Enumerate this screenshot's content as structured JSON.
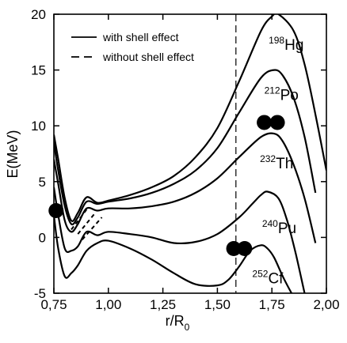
{
  "chart_data": {
    "type": "line",
    "xlabel": "r/R",
    "xlabel_sub": "0",
    "ylabel": "E(MeV)",
    "xlim": [
      0.75,
      2.0
    ],
    "ylim": [
      -5,
      20
    ],
    "x_ticks": [
      0.75,
      1.0,
      1.25,
      1.5,
      1.75,
      2.0
    ],
    "x_tick_labels": [
      "0,75",
      "1,00",
      "1,25",
      "1,50",
      "1,75",
      "2,00"
    ],
    "y_ticks": [
      -5,
      0,
      5,
      10,
      15,
      20
    ],
    "y_tick_labels": [
      "-5",
      "0",
      "5",
      "10",
      "15",
      "20"
    ],
    "grid": false,
    "legend": {
      "position": "top-left",
      "entries": [
        {
          "label": "with shell effect",
          "style": "solid"
        },
        {
          "label": "without shell effect",
          "style": "dashed"
        }
      ]
    },
    "series": [
      {
        "name": "198Hg",
        "mass": "198",
        "element": "Hg",
        "x": [
          0.75,
          0.77,
          0.8,
          0.83,
          0.86,
          0.9,
          0.95,
          1.0,
          1.1,
          1.2,
          1.3,
          1.4,
          1.5,
          1.6,
          1.7,
          1.75,
          1.78,
          1.85,
          1.9,
          1.95,
          2.0
        ],
        "y": [
          9.2,
          7.0,
          3.5,
          1.5,
          2.2,
          3.6,
          3.1,
          3.3,
          3.8,
          4.5,
          5.5,
          7.2,
          9.8,
          14.0,
          18.5,
          19.8,
          20.0,
          18.5,
          15.5,
          11.0,
          6.0
        ]
      },
      {
        "name": "212Po",
        "mass": "212",
        "element": "Po",
        "x": [
          0.75,
          0.77,
          0.8,
          0.83,
          0.86,
          0.9,
          0.95,
          1.0,
          1.1,
          1.2,
          1.3,
          1.4,
          1.5,
          1.6,
          1.7,
          1.76,
          1.8,
          1.85,
          1.9,
          1.95
        ],
        "y": [
          8.5,
          6.0,
          2.8,
          1.2,
          1.8,
          3.2,
          3.0,
          3.2,
          3.5,
          4.0,
          4.8,
          6.0,
          8.0,
          11.2,
          14.3,
          15.0,
          14.5,
          12.5,
          9.0,
          4.0
        ]
      },
      {
        "name": "232Th",
        "mass": "232",
        "element": "Th",
        "x": [
          0.75,
          0.77,
          0.8,
          0.83,
          0.86,
          0.9,
          0.95,
          1.0,
          1.1,
          1.2,
          1.3,
          1.4,
          1.5,
          1.6,
          1.7,
          1.76,
          1.8,
          1.85,
          1.9,
          1.95
        ],
        "y": [
          7.0,
          4.8,
          1.5,
          0.5,
          1.2,
          2.6,
          2.4,
          2.6,
          2.6,
          2.8,
          3.2,
          4.0,
          5.3,
          7.2,
          9.0,
          9.3,
          8.6,
          6.5,
          3.5,
          -0.5
        ]
      },
      {
        "name": "240Pu",
        "mass": "240",
        "element": "Pu",
        "x": [
          0.75,
          0.77,
          0.8,
          0.83,
          0.86,
          0.9,
          0.95,
          1.0,
          1.1,
          1.2,
          1.3,
          1.4,
          1.5,
          1.6,
          1.66,
          1.7,
          1.73,
          1.78,
          1.82,
          1.86,
          1.9
        ],
        "y": [
          4.5,
          2.0,
          -1.0,
          -1.2,
          -0.8,
          0.5,
          0.2,
          0.5,
          0.3,
          0.0,
          -0.5,
          -0.4,
          0.3,
          1.8,
          3.0,
          3.8,
          4.1,
          3.5,
          1.5,
          -1.5,
          -5.0
        ]
      },
      {
        "name": "252Cf",
        "mass": "252",
        "element": "Cf",
        "x": [
          0.75,
          0.77,
          0.8,
          0.83,
          0.86,
          0.9,
          0.95,
          1.0,
          1.1,
          1.2,
          1.3,
          1.4,
          1.5,
          1.55,
          1.6,
          1.65,
          1.7,
          1.73,
          1.76,
          1.8,
          1.84
        ],
        "y": [
          2.0,
          -1.0,
          -3.5,
          -3.2,
          -2.5,
          -1.2,
          -0.5,
          -0.3,
          -1.0,
          -2.0,
          -3.2,
          -4.2,
          -4.3,
          -3.8,
          -2.6,
          -1.2,
          -0.7,
          -1.0,
          -1.8,
          -3.5,
          -5.0
        ]
      }
    ],
    "annotations": {
      "vertical_dashed_line_x": 1.585,
      "dots": [
        {
          "x": 0.76,
          "y": 2.4
        },
        {
          "x": 1.715,
          "y": 10.3
        },
        {
          "x": 1.775,
          "y": 10.3
        },
        {
          "x": 1.575,
          "y": -1.0
        },
        {
          "x": 1.625,
          "y": -1.0
        }
      ]
    }
  }
}
